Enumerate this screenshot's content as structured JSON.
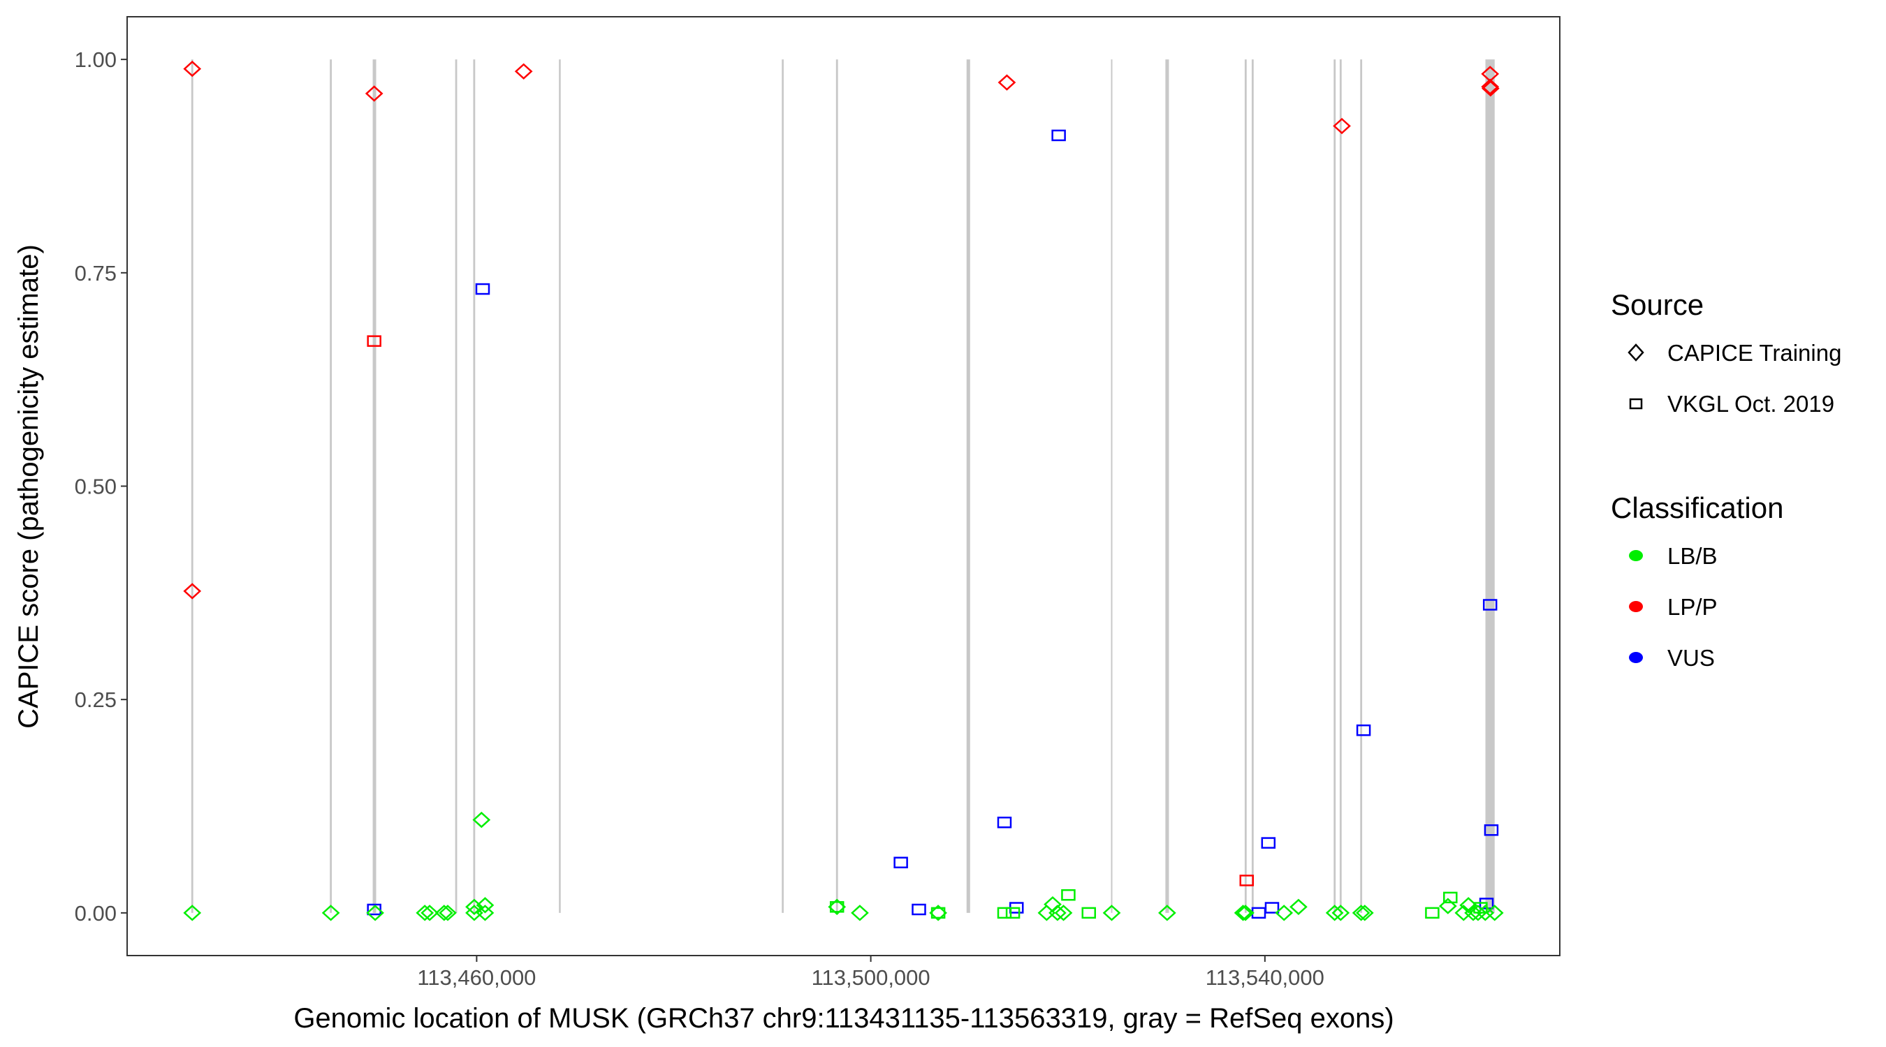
{
  "chart_data": {
    "type": "scatter",
    "xlabel": "Genomic location of MUSK (GRCh37 chr9:113431135-113563319, gray = RefSeq exons)",
    "ylabel": "CAPICE score (pathogenicity estimate)",
    "xlim": [
      113424526,
      113569928
    ],
    "ylim": [
      -0.05,
      1.05
    ],
    "x_ticks": [
      {
        "value": 113460000,
        "label": "113,460,000"
      },
      {
        "value": 113500000,
        "label": "113,500,000"
      },
      {
        "value": 113540000,
        "label": "113,540,000"
      }
    ],
    "y_ticks": [
      {
        "value": 0,
        "label": "0.00"
      },
      {
        "value": 0.25,
        "label": "0.25"
      },
      {
        "value": 0.5,
        "label": "0.50"
      },
      {
        "value": 0.75,
        "label": "0.75"
      },
      {
        "value": 1.0,
        "label": "1.00"
      }
    ],
    "grid": false,
    "legend_placement": "right",
    "colors": {
      "LB/B": "#00ee00",
      "LP/P": "#ff0000",
      "VUS": "#0000ff",
      "exon": "#c8c8c8"
    },
    "legend": {
      "source_title": "Source",
      "source_items": [
        {
          "label": "CAPICE Training",
          "shape": "diamond"
        },
        {
          "label": "VKGL Oct. 2019",
          "shape": "square"
        }
      ],
      "class_title": "Classification",
      "class_items": [
        {
          "label": "LB/B"
        },
        {
          "label": "LP/P"
        },
        {
          "label": "VUS"
        }
      ]
    },
    "exons": [
      [
        113431035,
        113431235
      ],
      [
        113445100,
        113445300
      ],
      [
        113449450,
        113449800
      ],
      [
        113457820,
        113458020
      ],
      [
        113459650,
        113459850
      ],
      [
        113468350,
        113468530
      ],
      [
        113490970,
        113491160
      ],
      [
        113496470,
        113496670
      ],
      [
        113509720,
        113510080
      ],
      [
        113524400,
        113524500
      ],
      [
        113529900,
        113530260
      ],
      [
        113537950,
        113538150
      ],
      [
        113538660,
        113538860
      ],
      [
        113546980,
        113547180
      ],
      [
        113547590,
        113547790
      ],
      [
        113549670,
        113549870
      ],
      [
        113562380,
        113563319
      ]
    ],
    "points": [
      {
        "x": 113431135,
        "y": 0.989,
        "source": "CAPICE Training",
        "class": "LP/P"
      },
      {
        "x": 113431135,
        "y": 0.377,
        "source": "CAPICE Training",
        "class": "LP/P"
      },
      {
        "x": 113449600,
        "y": 0.96,
        "source": "CAPICE Training",
        "class": "LP/P"
      },
      {
        "x": 113464770,
        "y": 0.986,
        "source": "CAPICE Training",
        "class": "LP/P"
      },
      {
        "x": 113513812,
        "y": 0.973,
        "source": "CAPICE Training",
        "class": "LP/P"
      },
      {
        "x": 113547811,
        "y": 0.922,
        "source": "CAPICE Training",
        "class": "LP/P"
      },
      {
        "x": 113562854,
        "y": 0.983,
        "source": "CAPICE Training",
        "class": "LP/P"
      },
      {
        "x": 113562854,
        "y": 0.968,
        "source": "CAPICE Training",
        "class": "LP/P"
      },
      {
        "x": 113562900,
        "y": 0.966,
        "source": "CAPICE Training",
        "class": "LP/P"
      },
      {
        "x": 113449600,
        "y": 0.67,
        "source": "VKGL Oct. 2019",
        "class": "LP/P"
      },
      {
        "x": 113538150,
        "y": 0.038,
        "source": "VKGL Oct. 2019",
        "class": "LP/P"
      },
      {
        "x": 113460610,
        "y": 0.731,
        "source": "VKGL Oct. 2019",
        "class": "VUS"
      },
      {
        "x": 113449600,
        "y": 0.004,
        "source": "VKGL Oct. 2019",
        "class": "VUS"
      },
      {
        "x": 113519071,
        "y": 0.911,
        "source": "VKGL Oct. 2019",
        "class": "VUS"
      },
      {
        "x": 113503050,
        "y": 0.059,
        "source": "VKGL Oct. 2019",
        "class": "VUS"
      },
      {
        "x": 113504884,
        "y": 0.004,
        "source": "VKGL Oct. 2019",
        "class": "VUS"
      },
      {
        "x": 113513567,
        "y": 0.106,
        "source": "VKGL Oct. 2019",
        "class": "VUS"
      },
      {
        "x": 113514790,
        "y": 0.006,
        "source": "VKGL Oct. 2019",
        "class": "VUS"
      },
      {
        "x": 113540351,
        "y": 0.082,
        "source": "VKGL Oct. 2019",
        "class": "VUS"
      },
      {
        "x": 113539373,
        "y": 0.0,
        "source": "VKGL Oct. 2019",
        "class": "VUS"
      },
      {
        "x": 113540718,
        "y": 0.006,
        "source": "VKGL Oct. 2019",
        "class": "VUS"
      },
      {
        "x": 113550013,
        "y": 0.214,
        "source": "VKGL Oct. 2019",
        "class": "VUS"
      },
      {
        "x": 113562854,
        "y": 0.361,
        "source": "VKGL Oct. 2019",
        "class": "VUS"
      },
      {
        "x": 113562977,
        "y": 0.097,
        "source": "VKGL Oct. 2019",
        "class": "VUS"
      },
      {
        "x": 113562487,
        "y": 0.011,
        "source": "VKGL Oct. 2019",
        "class": "VUS"
      },
      {
        "x": 113431135,
        "y": 0.0,
        "source": "CAPICE Training",
        "class": "LB/B"
      },
      {
        "x": 113445200,
        "y": 0.0,
        "source": "CAPICE Training",
        "class": "LB/B"
      },
      {
        "x": 113449700,
        "y": 0.0,
        "source": "CAPICE Training",
        "class": "LB/B"
      },
      {
        "x": 113454740,
        "y": 0.0,
        "source": "CAPICE Training",
        "class": "LB/B"
      },
      {
        "x": 113455230,
        "y": 0.0,
        "source": "CAPICE Training",
        "class": "LB/B"
      },
      {
        "x": 113456700,
        "y": 0.0,
        "source": "CAPICE Training",
        "class": "LB/B"
      },
      {
        "x": 113457065,
        "y": 0.0,
        "source": "CAPICE Training",
        "class": "LB/B"
      },
      {
        "x": 113459755,
        "y": 0.007,
        "source": "CAPICE Training",
        "class": "LB/B"
      },
      {
        "x": 113459755,
        "y": 0.0,
        "source": "CAPICE Training",
        "class": "LB/B"
      },
      {
        "x": 113460490,
        "y": 0.109,
        "source": "CAPICE Training",
        "class": "LB/B"
      },
      {
        "x": 113460856,
        "y": 0.009,
        "source": "CAPICE Training",
        "class": "LB/B"
      },
      {
        "x": 113460856,
        "y": 0.0,
        "source": "CAPICE Training",
        "class": "LB/B"
      },
      {
        "x": 113496568,
        "y": 0.007,
        "source": "CAPICE Training",
        "class": "LB/B"
      },
      {
        "x": 113498891,
        "y": 0.0,
        "source": "CAPICE Training",
        "class": "LB/B"
      },
      {
        "x": 113506841,
        "y": 0.0,
        "source": "CAPICE Training",
        "class": "LB/B"
      },
      {
        "x": 113517848,
        "y": 0.0,
        "source": "CAPICE Training",
        "class": "LB/B"
      },
      {
        "x": 113518459,
        "y": 0.01,
        "source": "CAPICE Training",
        "class": "LB/B"
      },
      {
        "x": 113518949,
        "y": 0.0,
        "source": "CAPICE Training",
        "class": "LB/B"
      },
      {
        "x": 113519560,
        "y": 0.0,
        "source": "CAPICE Training",
        "class": "LB/B"
      },
      {
        "x": 113524452,
        "y": 0.0,
        "source": "CAPICE Training",
        "class": "LB/B"
      },
      {
        "x": 113530078,
        "y": 0.0,
        "source": "CAPICE Training",
        "class": "LB/B"
      },
      {
        "x": 113537783,
        "y": 0.0,
        "source": "CAPICE Training",
        "class": "LB/B"
      },
      {
        "x": 113538027,
        "y": 0.0,
        "source": "CAPICE Training",
        "class": "LB/B"
      },
      {
        "x": 113541941,
        "y": 0.0,
        "source": "CAPICE Training",
        "class": "LB/B"
      },
      {
        "x": 113543409,
        "y": 0.007,
        "source": "CAPICE Training",
        "class": "LB/B"
      },
      {
        "x": 113547078,
        "y": 0.0,
        "source": "CAPICE Training",
        "class": "LB/B"
      },
      {
        "x": 113547689,
        "y": 0.0,
        "source": "CAPICE Training",
        "class": "LB/B"
      },
      {
        "x": 113549768,
        "y": 0.0,
        "source": "CAPICE Training",
        "class": "LB/B"
      },
      {
        "x": 113550136,
        "y": 0.0,
        "source": "CAPICE Training",
        "class": "LB/B"
      },
      {
        "x": 113558574,
        "y": 0.008,
        "source": "CAPICE Training",
        "class": "LB/B"
      },
      {
        "x": 113560164,
        "y": 0.0,
        "source": "CAPICE Training",
        "class": "LB/B"
      },
      {
        "x": 113560653,
        "y": 0.009,
        "source": "CAPICE Training",
        "class": "LB/B"
      },
      {
        "x": 113561142,
        "y": 0.0,
        "source": "CAPICE Training",
        "class": "LB/B"
      },
      {
        "x": 113561631,
        "y": 0.0,
        "source": "CAPICE Training",
        "class": "LB/B"
      },
      {
        "x": 113562365,
        "y": 0.0,
        "source": "CAPICE Training",
        "class": "LB/B"
      },
      {
        "x": 113563319,
        "y": 0.0,
        "source": "CAPICE Training",
        "class": "LB/B"
      },
      {
        "x": 113496568,
        "y": 0.007,
        "source": "VKGL Oct. 2019",
        "class": "LB/B"
      },
      {
        "x": 113506841,
        "y": 0.0,
        "source": "VKGL Oct. 2019",
        "class": "LB/B"
      },
      {
        "x": 113513567,
        "y": 0.0,
        "source": "VKGL Oct. 2019",
        "class": "LB/B"
      },
      {
        "x": 113514424,
        "y": 0.0,
        "source": "VKGL Oct. 2019",
        "class": "LB/B"
      },
      {
        "x": 113520050,
        "y": 0.021,
        "source": "VKGL Oct. 2019",
        "class": "LB/B"
      },
      {
        "x": 113522128,
        "y": 0.0,
        "source": "VKGL Oct. 2019",
        "class": "LB/B"
      },
      {
        "x": 113556984,
        "y": 0.0,
        "source": "VKGL Oct. 2019",
        "class": "LB/B"
      },
      {
        "x": 113558818,
        "y": 0.018,
        "source": "VKGL Oct. 2019",
        "class": "LB/B"
      },
      {
        "x": 113561876,
        "y": 0.006,
        "source": "VKGL Oct. 2019",
        "class": "LB/B"
      }
    ]
  }
}
